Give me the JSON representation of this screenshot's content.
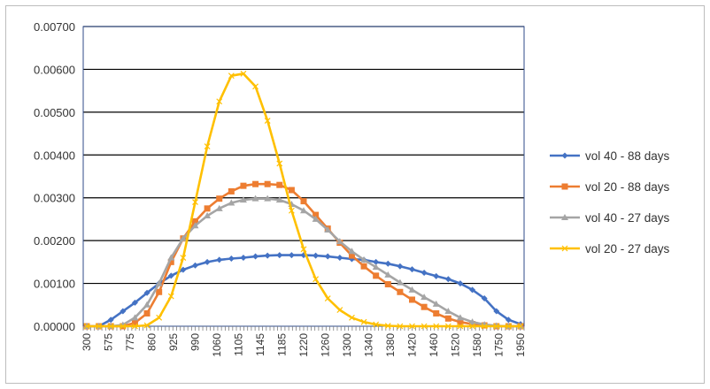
{
  "chart_data": {
    "type": "line",
    "title": "",
    "xlabel": "",
    "ylabel": "",
    "ylim": [
      0,
      0.007
    ],
    "y_ticks": [
      "0.00000",
      "0.00100",
      "0.00200",
      "0.00300",
      "0.00400",
      "0.00500",
      "0.00600",
      "0.00700"
    ],
    "x_tick_labels": [
      "300",
      "575",
      "775",
      "860",
      "925",
      "990",
      "1060",
      "1105",
      "1145",
      "1185",
      "1220",
      "1260",
      "1300",
      "1340",
      "1380",
      "1420",
      "1460",
      "1520",
      "1580",
      "1750",
      "1950"
    ],
    "grid": "horizontal",
    "legend_position": "right",
    "series": [
      {
        "name": "vol 40 - 88 days",
        "color": "#4472C4",
        "marker": "diamond",
        "values": [
          0.0,
          0.0,
          0.00015,
          0.00035,
          0.00055,
          0.00078,
          0.001,
          0.00118,
          0.00132,
          0.00142,
          0.0015,
          0.00155,
          0.00158,
          0.0016,
          0.00163,
          0.00165,
          0.00166,
          0.00166,
          0.00166,
          0.00165,
          0.00163,
          0.0016,
          0.00157,
          0.00155,
          0.0015,
          0.00146,
          0.0014,
          0.00133,
          0.00125,
          0.00117,
          0.0011,
          0.001,
          0.00085,
          0.00065,
          0.00035,
          0.00015,
          5e-05
        ]
      },
      {
        "name": "vol 20 - 88 days",
        "color": "#ED7D31",
        "marker": "square",
        "values": [
          0.0,
          0.0,
          0.0,
          0.0,
          8e-05,
          0.0003,
          0.0008,
          0.0015,
          0.00205,
          0.00245,
          0.00275,
          0.00298,
          0.00315,
          0.00328,
          0.00332,
          0.00332,
          0.0033,
          0.00318,
          0.00292,
          0.0026,
          0.00228,
          0.00195,
          0.00165,
          0.0014,
          0.00118,
          0.00098,
          0.0008,
          0.00062,
          0.00045,
          0.0003,
          0.00018,
          0.0001,
          5e-05,
          2e-05,
          0.0,
          0.0,
          0.0
        ]
      },
      {
        "name": "vol 40 - 27 days",
        "color": "#A5A5A5",
        "marker": "triangle",
        "values": [
          0.0,
          0.0,
          0.0,
          3e-05,
          0.0002,
          0.0005,
          0.001,
          0.0016,
          0.00205,
          0.00235,
          0.00258,
          0.00275,
          0.00288,
          0.00295,
          0.00298,
          0.00298,
          0.00295,
          0.00285,
          0.0027,
          0.0025,
          0.00225,
          0.00198,
          0.00175,
          0.00155,
          0.00138,
          0.0012,
          0.00102,
          0.00085,
          0.00068,
          0.00052,
          0.00035,
          0.0002,
          0.0001,
          4e-05,
          1e-05,
          0.0,
          0.0
        ]
      },
      {
        "name": "vol 20 - 27 days",
        "color": "#FFC000",
        "marker": "x",
        "values": [
          0.0,
          0.0,
          0.0,
          0.0,
          0.0,
          2e-05,
          0.0002,
          0.0007,
          0.0016,
          0.0029,
          0.0042,
          0.00525,
          0.00585,
          0.0059,
          0.0056,
          0.0048,
          0.0038,
          0.0027,
          0.0018,
          0.0011,
          0.00065,
          0.00038,
          0.0002,
          0.0001,
          4e-05,
          1e-05,
          0.0,
          0.0,
          0.0,
          0.0,
          0.0,
          0.0,
          0.0,
          0.0,
          0.0,
          0.0,
          0.0
        ]
      }
    ]
  }
}
